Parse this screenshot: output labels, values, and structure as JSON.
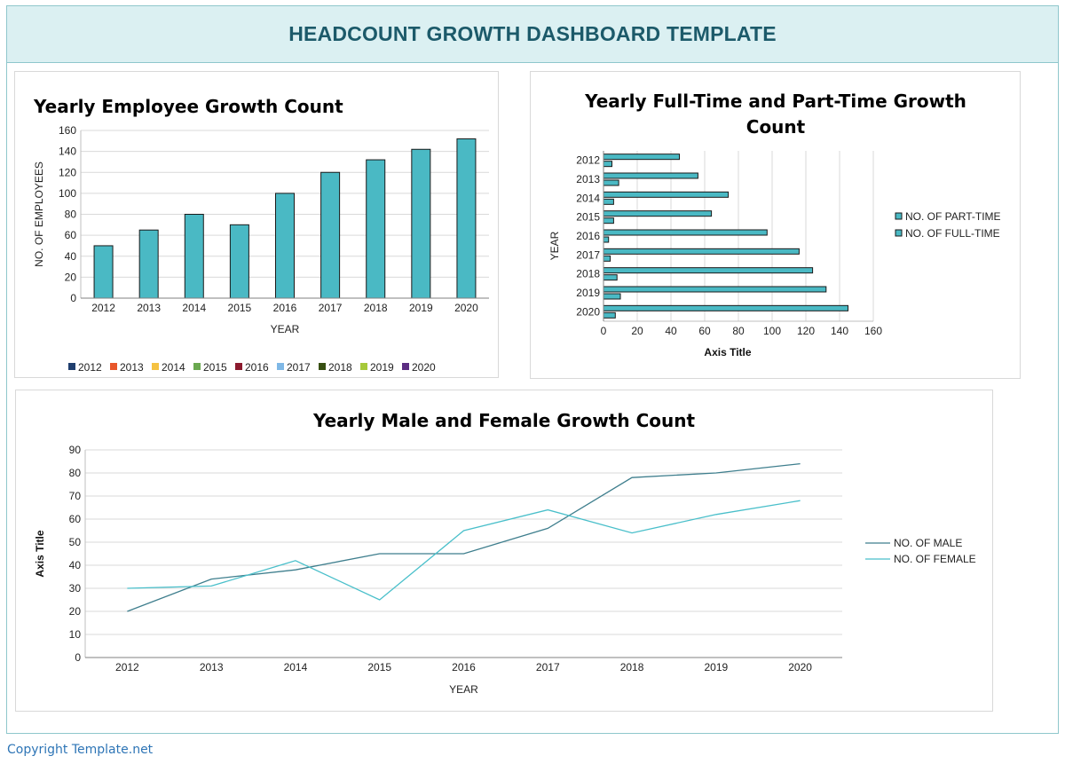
{
  "header": {
    "title": "HEADCOUNT GROWTH DASHBOARD TEMPLATE"
  },
  "footer": {
    "copyright": "Copyright Template.net"
  },
  "colors": {
    "bar_fill": "#4ab9c4",
    "male_line": "#3e7e8d",
    "female_line": "#49bfca",
    "grid": "#d9d9d9",
    "title": "#1c5a6a",
    "header_bg": "#dbf0f2"
  },
  "chart_data": [
    {
      "type": "bar",
      "title": "Yearly Employee Growth Count",
      "categories": [
        "2012",
        "2013",
        "2014",
        "2015",
        "2016",
        "2017",
        "2018",
        "2019",
        "2020"
      ],
      "values": [
        50,
        65,
        80,
        70,
        100,
        120,
        132,
        142,
        152
      ],
      "xlabel": "YEAR",
      "ylabel": "NO. OF EMPLOYEES",
      "ylim": [
        0,
        160
      ],
      "yticks": [
        0,
        20,
        40,
        60,
        80,
        100,
        120,
        140,
        160
      ],
      "grid": true,
      "legend_position": "bottom",
      "legend": [
        {
          "label": "2012",
          "color": "#1f3e6e"
        },
        {
          "label": "2013",
          "color": "#e8562a"
        },
        {
          "label": "2014",
          "color": "#f5c242"
        },
        {
          "label": "2015",
          "color": "#6aa84f"
        },
        {
          "label": "2016",
          "color": "#8b1a2e"
        },
        {
          "label": "2017",
          "color": "#7fb8e6"
        },
        {
          "label": "2018",
          "color": "#374f12"
        },
        {
          "label": "2019",
          "color": "#a6c93a"
        },
        {
          "label": "2020",
          "color": "#5b2d82"
        }
      ]
    },
    {
      "type": "bar",
      "orientation": "horizontal",
      "title": "Yearly Full-Time and Part-Time Growth Count",
      "categories": [
        "2012",
        "2013",
        "2014",
        "2015",
        "2016",
        "2017",
        "2018",
        "2019",
        "2020"
      ],
      "series": [
        {
          "name": "NO. OF PART-TIME",
          "values": [
            45,
            56,
            74,
            64,
            97,
            116,
            124,
            132,
            145
          ]
        },
        {
          "name": "NO. OF FULL-TIME",
          "values": [
            5,
            9,
            6,
            6,
            3,
            4,
            8,
            10,
            7
          ]
        }
      ],
      "xlabel": "Axis Title",
      "ylabel": "YEAR",
      "xlim": [
        0,
        160
      ],
      "xticks": [
        0,
        20,
        40,
        60,
        80,
        100,
        120,
        140,
        160
      ],
      "grid": true,
      "legend_position": "right"
    },
    {
      "type": "line",
      "title": "Yearly Male and Female Growth Count",
      "categories": [
        "2012",
        "2013",
        "2014",
        "2015",
        "2016",
        "2017",
        "2018",
        "2019",
        "2020"
      ],
      "series": [
        {
          "name": "NO. OF MALE",
          "values": [
            20,
            34,
            38,
            45,
            45,
            56,
            78,
            80,
            84
          ]
        },
        {
          "name": "NO. OF FEMALE",
          "values": [
            30,
            31,
            42,
            25,
            55,
            64,
            54,
            62,
            68
          ]
        }
      ],
      "xlabel": "YEAR",
      "ylabel": "Axis Title",
      "ylim": [
        0,
        90
      ],
      "yticks": [
        0,
        10,
        20,
        30,
        40,
        50,
        60,
        70,
        80,
        90
      ],
      "grid": true,
      "legend_position": "right"
    }
  ]
}
